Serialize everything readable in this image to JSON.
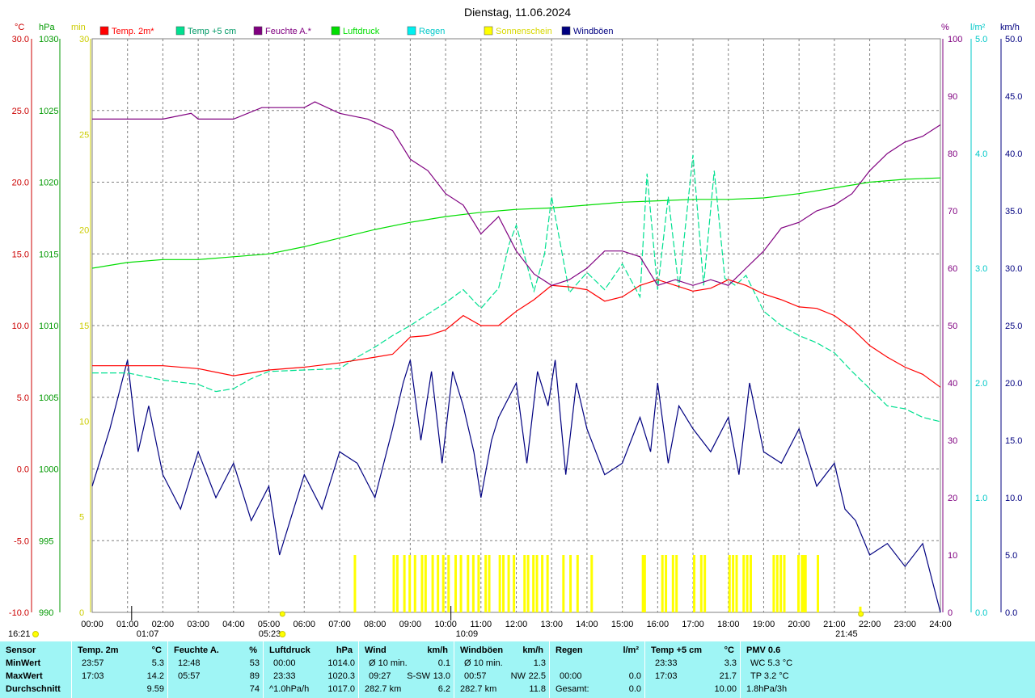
{
  "title": "Dienstag, 11.06.2024",
  "colors": {
    "temp": "#ff0000",
    "temp5": "#00e090",
    "hum": "#800080",
    "pressure": "#00dd00",
    "rain": "#00f0f0",
    "sun": "#ffff00",
    "gust": "#000080",
    "grid": "#808080",
    "axis_celsius": "#cc0000",
    "axis_pressure": "#009900",
    "axis_min": "#cccc00",
    "axis_percent": "#800080",
    "axis_rain": "#00c8c8",
    "axis_kmh": "#000080",
    "stats_bg": "#9ff5f5"
  },
  "axes": {
    "celsius": {
      "unit": "°C",
      "ticks": [
        "30.0",
        "25.0",
        "20.0",
        "15.0",
        "10.0",
        "5.0",
        "0.0",
        "-5.0",
        "-10.0"
      ]
    },
    "pressure": {
      "unit": "hPa",
      "ticks": [
        "1030",
        "1025",
        "1020",
        "1015",
        "1010",
        "1005",
        "1000",
        "995",
        "990"
      ]
    },
    "minutes": {
      "unit": "min",
      "ticks": [
        "30",
        "25",
        "20",
        "15",
        "10",
        "5",
        "0"
      ]
    },
    "percent": {
      "unit": "%",
      "ticks": [
        "100",
        "90",
        "80",
        "70",
        "60",
        "50",
        "40",
        "30",
        "20",
        "10",
        "0"
      ]
    },
    "rain": {
      "unit": "l/m²",
      "ticks": [
        "5.0",
        "4.0",
        "3.0",
        "2.0",
        "1.0",
        "0.0"
      ]
    },
    "kmh": {
      "unit": "km/h",
      "ticks": [
        "50.0",
        "45.0",
        "40.0",
        "35.0",
        "30.0",
        "25.0",
        "20.0",
        "15.0",
        "10.0",
        "5.0",
        "0.0"
      ]
    },
    "time": {
      "ticks": [
        "00:00",
        "01:00",
        "02:00",
        "03:00",
        "04:00",
        "05:00",
        "06:00",
        "07:00",
        "08:00",
        "09:00",
        "10:00",
        "11:00",
        "12:00",
        "13:00",
        "14:00",
        "15:00",
        "16:00",
        "17:00",
        "18:00",
        "19:00",
        "20:00",
        "21:00",
        "22:00",
        "23:00",
        "24:00"
      ]
    }
  },
  "legend": [
    {
      "label": "Temp. 2m*",
      "color": "#ff0000"
    },
    {
      "label": "Temp +5 cm",
      "color": "#00e090"
    },
    {
      "label": "Feuchte A.*",
      "color": "#800080"
    },
    {
      "label": "Luftdruck",
      "color": "#00dd00"
    },
    {
      "label": "Regen",
      "color": "#00f0f0"
    },
    {
      "label": "Sonnenschein",
      "color": "#ffff00"
    },
    {
      "label": "Windböen",
      "color": "#000080"
    }
  ],
  "markers": {
    "left_time": "16:21",
    "moon_low": "01:07",
    "sunrise": "05:23",
    "moon_high": "10:09",
    "sunset": "21:45"
  },
  "chart_data": {
    "type": "line",
    "title": "Dienstag, 11.06.2024",
    "x_unit": "hours",
    "xlim": [
      0,
      24
    ],
    "grid": true,
    "legend_position": "top",
    "series": [
      {
        "name": "Temp. 2m*",
        "axis": "°C",
        "color": "#ff0000",
        "ylim": [
          -10,
          30
        ],
        "x": [
          0,
          1,
          2,
          3,
          4,
          4.5,
          5,
          6,
          7,
          8,
          8.5,
          9,
          9.5,
          10,
          10.5,
          11,
          11.5,
          12,
          12.5,
          13,
          13.5,
          14,
          14.5,
          15,
          15.5,
          16,
          16.5,
          17,
          17.5,
          18,
          18.5,
          19,
          19.5,
          20,
          20.5,
          21,
          21.5,
          22,
          22.5,
          23,
          23.5,
          24
        ],
        "values": [
          7.2,
          7.2,
          7.2,
          7.0,
          6.5,
          6.7,
          6.9,
          7.1,
          7.4,
          7.8,
          8.0,
          9.2,
          9.3,
          9.7,
          10.7,
          10.0,
          10.0,
          11.0,
          11.8,
          12.8,
          12.7,
          12.5,
          11.7,
          12.0,
          12.8,
          13.2,
          12.8,
          12.4,
          12.6,
          13.2,
          12.8,
          12.2,
          11.8,
          11.3,
          11.2,
          10.7,
          9.8,
          8.6,
          7.8,
          7.1,
          6.6,
          5.7
        ]
      },
      {
        "name": "Temp +5 cm",
        "axis": "°C",
        "color": "#00e090",
        "ylim": [
          -10,
          30
        ],
        "x": [
          0,
          1,
          2,
          3,
          3.5,
          4,
          4.5,
          5,
          6,
          7,
          7.5,
          8,
          8.5,
          9,
          9.5,
          10,
          10.5,
          11,
          11.5,
          11.8,
          12,
          12.5,
          12.8,
          13,
          13.5,
          14,
          14.5,
          15,
          15.5,
          15.7,
          16,
          16.3,
          16.6,
          17,
          17.3,
          17.6,
          17.9,
          18.2,
          18.5,
          19,
          19.5,
          20,
          20.5,
          21,
          21.5,
          22,
          22.5,
          23,
          23.5,
          24
        ],
        "values": [
          6.7,
          6.7,
          6.2,
          5.9,
          5.4,
          5.6,
          6.3,
          6.8,
          6.9,
          7.0,
          7.8,
          8.5,
          9.3,
          10.0,
          10.8,
          11.6,
          12.5,
          11.2,
          12.6,
          15.7,
          17.0,
          12.4,
          15.0,
          19.0,
          12.3,
          13.7,
          12.5,
          14.3,
          12.0,
          20.6,
          12.5,
          19.0,
          12.6,
          21.9,
          12.8,
          20.8,
          13.3,
          12.8,
          13.5,
          11.0,
          10.0,
          9.3,
          8.8,
          8.1,
          6.8,
          5.6,
          4.4,
          4.2,
          3.6,
          3.3
        ]
      },
      {
        "name": "Feuchte A.*",
        "axis": "%",
        "color": "#800080",
        "ylim": [
          0,
          100
        ],
        "x": [
          0,
          1,
          2,
          2.8,
          3,
          4,
          4.8,
          5,
          6,
          6.3,
          7,
          7.8,
          8.5,
          9,
          9.5,
          10,
          10.5,
          11,
          11.5,
          12,
          12.5,
          13,
          13.5,
          14,
          14.5,
          15,
          15.5,
          16,
          16.5,
          17,
          17.5,
          18,
          18.5,
          19,
          19.5,
          20,
          20.5,
          21,
          21.5,
          22,
          22.5,
          23,
          23.5,
          24
        ],
        "values": [
          86,
          86,
          86,
          87,
          86,
          86,
          88,
          88,
          88,
          89,
          87,
          86,
          84,
          79,
          77,
          73,
          71,
          66,
          69,
          63,
          59,
          57,
          58,
          60,
          63,
          63,
          62,
          57,
          58,
          57,
          58,
          57,
          60,
          63,
          67,
          68,
          70,
          71,
          73,
          77,
          80,
          82,
          83,
          85
        ]
      },
      {
        "name": "Luftdruck",
        "axis": "hPa",
        "color": "#00dd00",
        "ylim": [
          990,
          1030
        ],
        "x": [
          0,
          1,
          2,
          3,
          4,
          5,
          6,
          7,
          8,
          9,
          10,
          11,
          12,
          13,
          14,
          15,
          16,
          17,
          18,
          19,
          20,
          21,
          22,
          23,
          24
        ],
        "values": [
          1014.0,
          1014.4,
          1014.6,
          1014.6,
          1014.8,
          1015.0,
          1015.5,
          1016.1,
          1016.7,
          1017.2,
          1017.6,
          1017.9,
          1018.1,
          1018.2,
          1018.4,
          1018.6,
          1018.7,
          1018.8,
          1018.8,
          1018.9,
          1019.2,
          1019.6,
          1020.0,
          1020.2,
          1020.3
        ]
      },
      {
        "name": "Windböen",
        "axis": "km/h",
        "color": "#000080",
        "ylim": [
          0,
          50
        ],
        "x": [
          0,
          0.5,
          1,
          1.3,
          1.6,
          2,
          2.5,
          3,
          3.5,
          4,
          4.5,
          5,
          5.3,
          5.6,
          6,
          6.5,
          7,
          7.5,
          8,
          8.5,
          8.8,
          9,
          9.3,
          9.6,
          9.9,
          10.2,
          10.5,
          10.8,
          11,
          11.3,
          11.5,
          12,
          12.3,
          12.6,
          12.9,
          13.1,
          13.4,
          13.7,
          14,
          14.5,
          15,
          15.5,
          15.8,
          16,
          16.3,
          16.6,
          17,
          17.5,
          18,
          18.3,
          18.6,
          19,
          19.5,
          20,
          20.5,
          21,
          21.3,
          21.6,
          22,
          22.5,
          23,
          23.5,
          24
        ],
        "values": [
          11,
          16,
          22,
          14,
          18,
          12,
          9,
          14,
          10,
          13,
          8,
          11,
          5,
          8,
          12,
          9,
          14,
          13,
          10,
          16,
          20,
          22,
          15,
          21,
          13,
          21,
          18,
          14,
          10,
          15,
          17,
          20,
          13,
          21,
          18,
          22,
          12,
          20,
          16,
          12,
          13,
          17,
          14,
          20,
          13,
          18,
          16,
          14,
          17,
          12,
          20,
          14,
          13,
          16,
          11,
          13,
          9,
          8,
          5,
          6,
          4,
          6,
          0
        ]
      }
    ],
    "sunshine_bars": {
      "name": "Sonnenschein",
      "axis": "min",
      "ylim": [
        0,
        30
      ],
      "x": [
        7.4,
        8.5,
        8.6,
        8.8,
        8.95,
        9.1,
        9.3,
        9.4,
        9.6,
        9.75,
        9.9,
        10.05,
        10.25,
        10.4,
        10.6,
        10.75,
        10.9,
        11.1,
        11.2,
        11.5,
        11.6,
        11.75,
        11.9,
        12.2,
        12.3,
        12.45,
        12.55,
        12.7,
        12.85,
        13.3,
        13.5,
        13.7,
        14.1,
        15.55,
        15.6,
        16.1,
        16.2,
        16.4,
        16.5,
        17.0,
        17.2,
        17.3,
        18.0,
        18.1,
        18.2,
        18.4,
        18.5,
        18.6,
        19.25,
        19.35,
        19.45,
        19.55,
        19.95,
        20.05,
        20.1,
        20.15,
        20.5,
        21.7
      ],
      "values": [
        3,
        3,
        3,
        3,
        3,
        3,
        3,
        3,
        3,
        3,
        3,
        3,
        3,
        3,
        3,
        3,
        3,
        3,
        3,
        3,
        3,
        3,
        3,
        3,
        3,
        3,
        3,
        3,
        3,
        3,
        3,
        3,
        3,
        3,
        3,
        3,
        3,
        3,
        3,
        3,
        3,
        3,
        3,
        3,
        3,
        3,
        3,
        3,
        3,
        3,
        3,
        3,
        3,
        3,
        3,
        3,
        3,
        0.3
      ]
    }
  },
  "stats": {
    "row_labels": {
      "title": "Sensor",
      "min": "MinWert",
      "max": "MaxWert",
      "avg": "Durchschnitt"
    },
    "blocks": [
      {
        "title": "Temp. 2m",
        "unit": "°C",
        "min_time": "23:57",
        "min_val": "5.3",
        "max_time": "17:03",
        "max_val": "14.2",
        "avg_label": "",
        "avg_val": "9.59"
      },
      {
        "title": "Feuchte A.",
        "unit": "%",
        "min_time": "12:48",
        "min_val": "53",
        "max_time": "05:57",
        "max_val": "89",
        "avg_label": "",
        "avg_val": "74"
      },
      {
        "title": "Luftdruck",
        "unit": "hPa",
        "min_time": "00:00",
        "min_val": "1014.0",
        "max_time": "23:33",
        "max_val": "1020.3",
        "avg_label": "^1.0hPa/h",
        "avg_val": "1017.0"
      },
      {
        "title": "Wind",
        "unit": "km/h",
        "min_time": "Ø 10 min.",
        "min_val": "0.1",
        "max_time": "09:27",
        "max_mid": "S-SW",
        "max_val": "13.0",
        "avg_label": "282.7 km",
        "avg_val": "6.2"
      },
      {
        "title": "Windböen",
        "unit": "km/h",
        "min_time": "Ø 10 min.",
        "min_val": "1.3",
        "max_time": "00:57",
        "max_mid": "NW",
        "max_val": "22.5",
        "avg_label": "282.7 km",
        "avg_val": "11.8"
      },
      {
        "title": "Regen",
        "unit": "l/m²",
        "min_time": "",
        "min_val": "",
        "max_time": "00:00",
        "max_val": "0.0",
        "avg_label": "Gesamt:",
        "avg_val": "0.0"
      },
      {
        "title": "Temp +5 cm",
        "unit": "°C",
        "min_time": "23:33",
        "min_val": "3.3",
        "max_time": "17:03",
        "max_val": "21.7",
        "avg_label": "",
        "avg_val": "10.00"
      },
      {
        "title": "PMV 0.6",
        "unit": "",
        "min_time": "WC 5.3 °C",
        "min_val": "",
        "max_time": "TP 3.2 °C",
        "max_val": "",
        "avg_label": "1.8hPa/3h",
        "avg_val": ""
      }
    ]
  }
}
